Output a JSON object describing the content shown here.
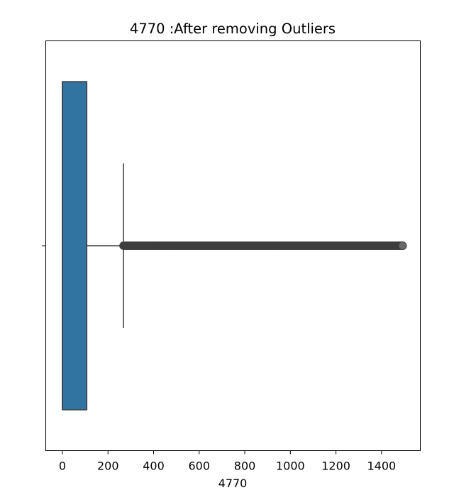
{
  "chart_data": {
    "type": "box",
    "title": "4770 :After removing Outliers",
    "xlabel": "4770",
    "ylabel": "",
    "orientation": "horizontal",
    "xlim": [
      -73,
      1570
    ],
    "xticks": [
      0,
      200,
      400,
      600,
      800,
      1000,
      1200,
      1400
    ],
    "xtick_labels": [
      "0",
      "200",
      "400",
      "600",
      "800",
      "1000",
      "1200",
      "1400"
    ],
    "grid": false,
    "box": {
      "q1": 0,
      "median": 0,
      "q3": 107,
      "whisker_low": 0,
      "whisker_high": 268
    },
    "outliers_range": [
      268,
      1492
    ],
    "colors": {
      "box_fill": "#3274a1",
      "box_edge": "#3d3d3d",
      "whisker": "#3d3d3d",
      "outlier": "#3d3d3d"
    }
  }
}
